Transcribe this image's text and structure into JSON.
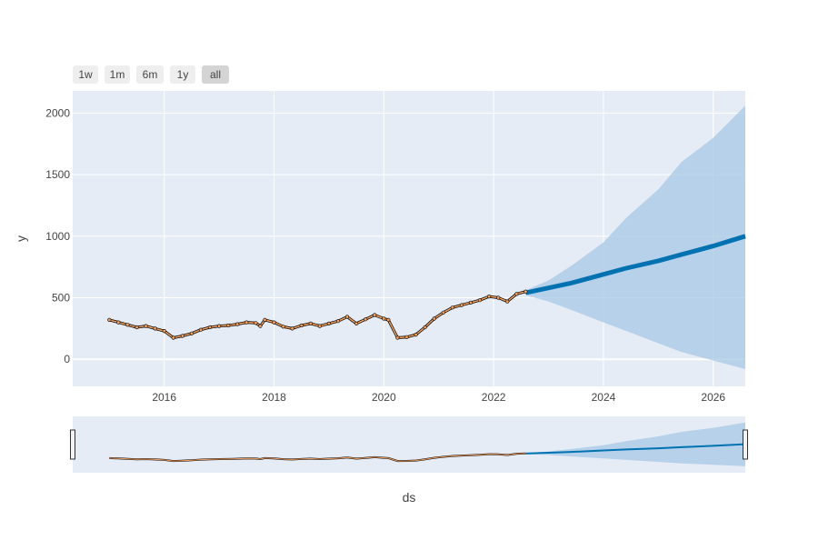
{
  "range_selector": {
    "buttons": [
      {
        "label": "1w",
        "active": false
      },
      {
        "label": "1m",
        "active": false
      },
      {
        "label": "6m",
        "active": false
      },
      {
        "label": "1y",
        "active": false
      },
      {
        "label": "all",
        "active": true
      }
    ]
  },
  "chart_data": {
    "type": "line",
    "title": "",
    "xlabel": "ds",
    "ylabel": "y",
    "x_ticks": [
      "2016",
      "2018",
      "2020",
      "2022",
      "2024",
      "2026"
    ],
    "y_ticks": [
      0,
      500,
      1000,
      1500,
      2000
    ],
    "xlim": [
      "2014-05-01",
      "2026-08-01"
    ],
    "ylim": [
      -220,
      2180
    ],
    "grid": true,
    "legend": "none",
    "rangeslider": true,
    "colors": {
      "plot_bg": "#e5ecf6",
      "grid": "#ffffff",
      "actual_line": "#000000",
      "actual_markers": "#f4a261",
      "forecast_line": "#0072b2",
      "uncertainty_band": "#a5c8e4"
    },
    "series": [
      {
        "kind": "actual",
        "x": [
          "2015-01",
          "2015-03",
          "2015-05",
          "2015-07",
          "2015-09",
          "2015-11",
          "2016-01",
          "2016-03",
          "2016-05",
          "2016-07",
          "2016-09",
          "2016-11",
          "2017-01",
          "2017-03",
          "2017-05",
          "2017-07",
          "2017-09",
          "2017-10",
          "2017-11",
          "2018-01",
          "2018-03",
          "2018-05",
          "2018-07",
          "2018-09",
          "2018-11",
          "2019-01",
          "2019-03",
          "2019-05",
          "2019-07",
          "2019-09",
          "2019-11",
          "2020-01",
          "2020-02",
          "2020-04",
          "2020-06",
          "2020-08",
          "2020-10",
          "2020-12",
          "2021-02",
          "2021-04",
          "2021-06",
          "2021-08",
          "2021-10",
          "2021-12",
          "2022-02",
          "2022-04",
          "2022-06",
          "2022-08"
        ],
        "y": [
          320,
          300,
          280,
          260,
          270,
          250,
          230,
          175,
          190,
          210,
          240,
          260,
          270,
          275,
          285,
          300,
          295,
          270,
          320,
          300,
          265,
          250,
          275,
          290,
          270,
          290,
          310,
          345,
          290,
          325,
          360,
          330,
          320,
          175,
          180,
          200,
          260,
          330,
          380,
          420,
          440,
          460,
          480,
          510,
          500,
          470,
          530,
          550
        ]
      },
      {
        "kind": "forecast",
        "x": [
          "2022-08",
          "2023-01",
          "2023-06",
          "2024-01",
          "2024-06",
          "2025-01",
          "2025-06",
          "2026-01",
          "2026-08"
        ],
        "y": [
          540,
          580,
          620,
          690,
          740,
          800,
          850,
          920,
          1000
        ]
      },
      {
        "kind": "forecast_upper",
        "x": [
          "2022-08",
          "2023-01",
          "2023-06",
          "2024-01",
          "2024-06",
          "2025-01",
          "2025-06",
          "2026-01",
          "2026-08"
        ],
        "y": [
          560,
          640,
          760,
          950,
          1150,
          1380,
          1600,
          1800,
          2060
        ]
      },
      {
        "kind": "forecast_lower",
        "x": [
          "2022-08",
          "2023-01",
          "2023-06",
          "2024-01",
          "2024-06",
          "2025-01",
          "2025-06",
          "2026-01",
          "2026-08"
        ],
        "y": [
          520,
          470,
          400,
          300,
          230,
          130,
          60,
          -10,
          -80
        ]
      }
    ]
  }
}
